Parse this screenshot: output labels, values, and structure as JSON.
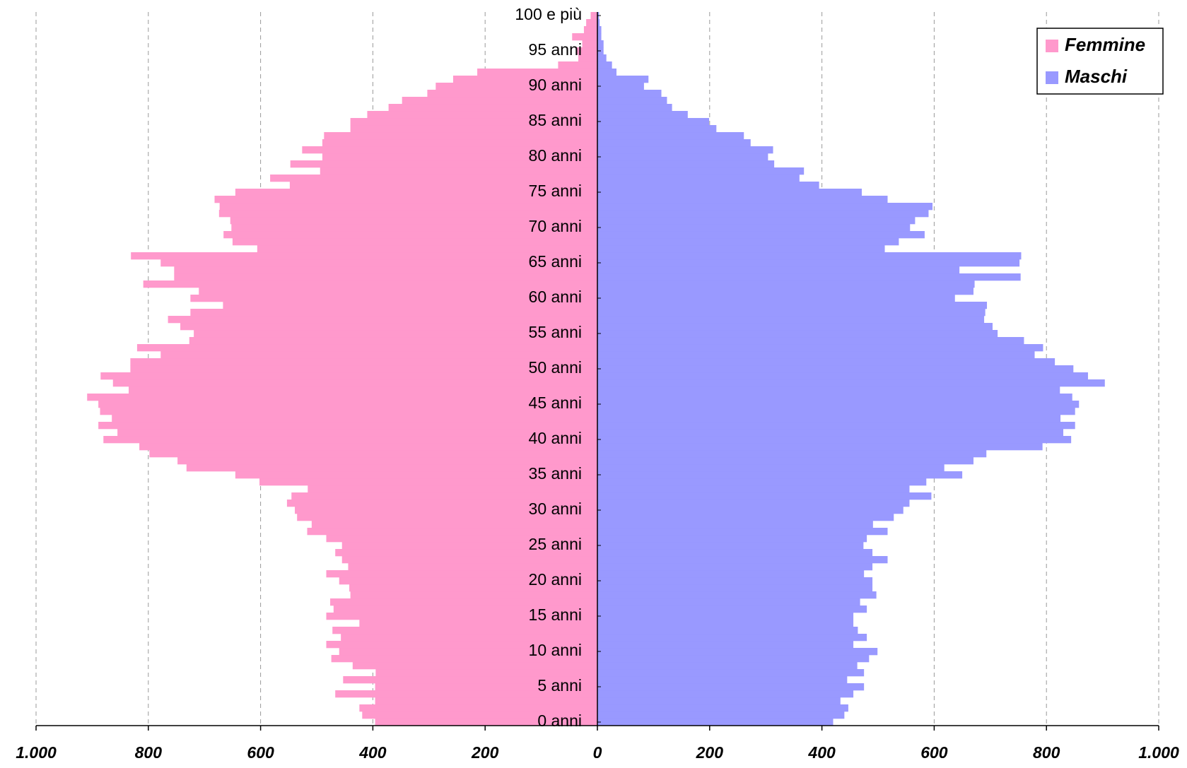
{
  "chart_data": {
    "type": "population_pyramid",
    "categories": [
      "0 anni",
      null,
      null,
      null,
      null,
      "5 anni",
      null,
      null,
      null,
      null,
      "10 anni",
      null,
      null,
      null,
      null,
      "15 anni",
      null,
      null,
      null,
      null,
      "20 anni",
      null,
      null,
      null,
      null,
      "25 anni",
      null,
      null,
      null,
      null,
      "30 anni",
      null,
      null,
      null,
      null,
      "35 anni",
      null,
      null,
      null,
      null,
      "40 anni",
      null,
      null,
      null,
      null,
      "45 anni",
      null,
      null,
      null,
      null,
      "50 anni",
      null,
      null,
      null,
      null,
      "55 anni",
      null,
      null,
      null,
      null,
      "60 anni",
      null,
      null,
      null,
      null,
      "65 anni",
      null,
      null,
      null,
      null,
      "70 anni",
      null,
      null,
      null,
      null,
      "75 anni",
      null,
      null,
      null,
      null,
      "80 anni",
      null,
      null,
      null,
      null,
      "85 anni",
      null,
      null,
      null,
      null,
      "90 anni",
      null,
      null,
      null,
      null,
      "95 anni",
      null,
      null,
      null,
      null,
      "100 e più"
    ],
    "series": [
      {
        "name": "Femmine",
        "color": "#ff99cc",
        "side": "left",
        "values": [
          396,
          419,
          424,
          396,
          467,
          396,
          453,
          395,
          436,
          474,
          460,
          483,
          457,
          472,
          424,
          483,
          470,
          476,
          440,
          442,
          460,
          483,
          444,
          455,
          467,
          455,
          483,
          517,
          509,
          535,
          539,
          553,
          545,
          516,
          602,
          645,
          732,
          748,
          798,
          816,
          880,
          855,
          889,
          865,
          886,
          889,
          909,
          835,
          863,
          885,
          832,
          832,
          778,
          820,
          727,
          719,
          743,
          765,
          725,
          667,
          725,
          710,
          809,
          754,
          754,
          778,
          831,
          606,
          650,
          666,
          652,
          654,
          674,
          673,
          682,
          645,
          548,
          583,
          494,
          547,
          490,
          526,
          490,
          487,
          440,
          440,
          410,
          372,
          348,
          303,
          288,
          257,
          214,
          70,
          34,
          38,
          27,
          45,
          24,
          20,
          12
        ]
      },
      {
        "name": "Maschi",
        "color": "#9999ff",
        "side": "right",
        "values": [
          420,
          440,
          447,
          433,
          456,
          475,
          445,
          475,
          463,
          484,
          499,
          456,
          480,
          464,
          456,
          456,
          480,
          468,
          497,
          490,
          490,
          475,
          490,
          517,
          490,
          474,
          480,
          517,
          491,
          528,
          545,
          556,
          595,
          556,
          586,
          650,
          618,
          670,
          693,
          793,
          844,
          830,
          851,
          825,
          851,
          858,
          846,
          824,
          904,
          874,
          848,
          815,
          779,
          794,
          760,
          713,
          704,
          689,
          691,
          694,
          637,
          670,
          672,
          754,
          645,
          752,
          755,
          512,
          537,
          583,
          557,
          566,
          590,
          597,
          517,
          471,
          395,
          360,
          368,
          315,
          304,
          313,
          273,
          261,
          212,
          199,
          161,
          133,
          124,
          114,
          83,
          91,
          34,
          26,
          16,
          11,
          11,
          7,
          7,
          4,
          3
        ]
      }
    ],
    "xlim": [
      0,
      1000
    ],
    "xticks": [
      0,
      200,
      400,
      600,
      800,
      {
        "value": 1000,
        "label": "1.000"
      }
    ],
    "grid": true,
    "legend": "upper right"
  }
}
